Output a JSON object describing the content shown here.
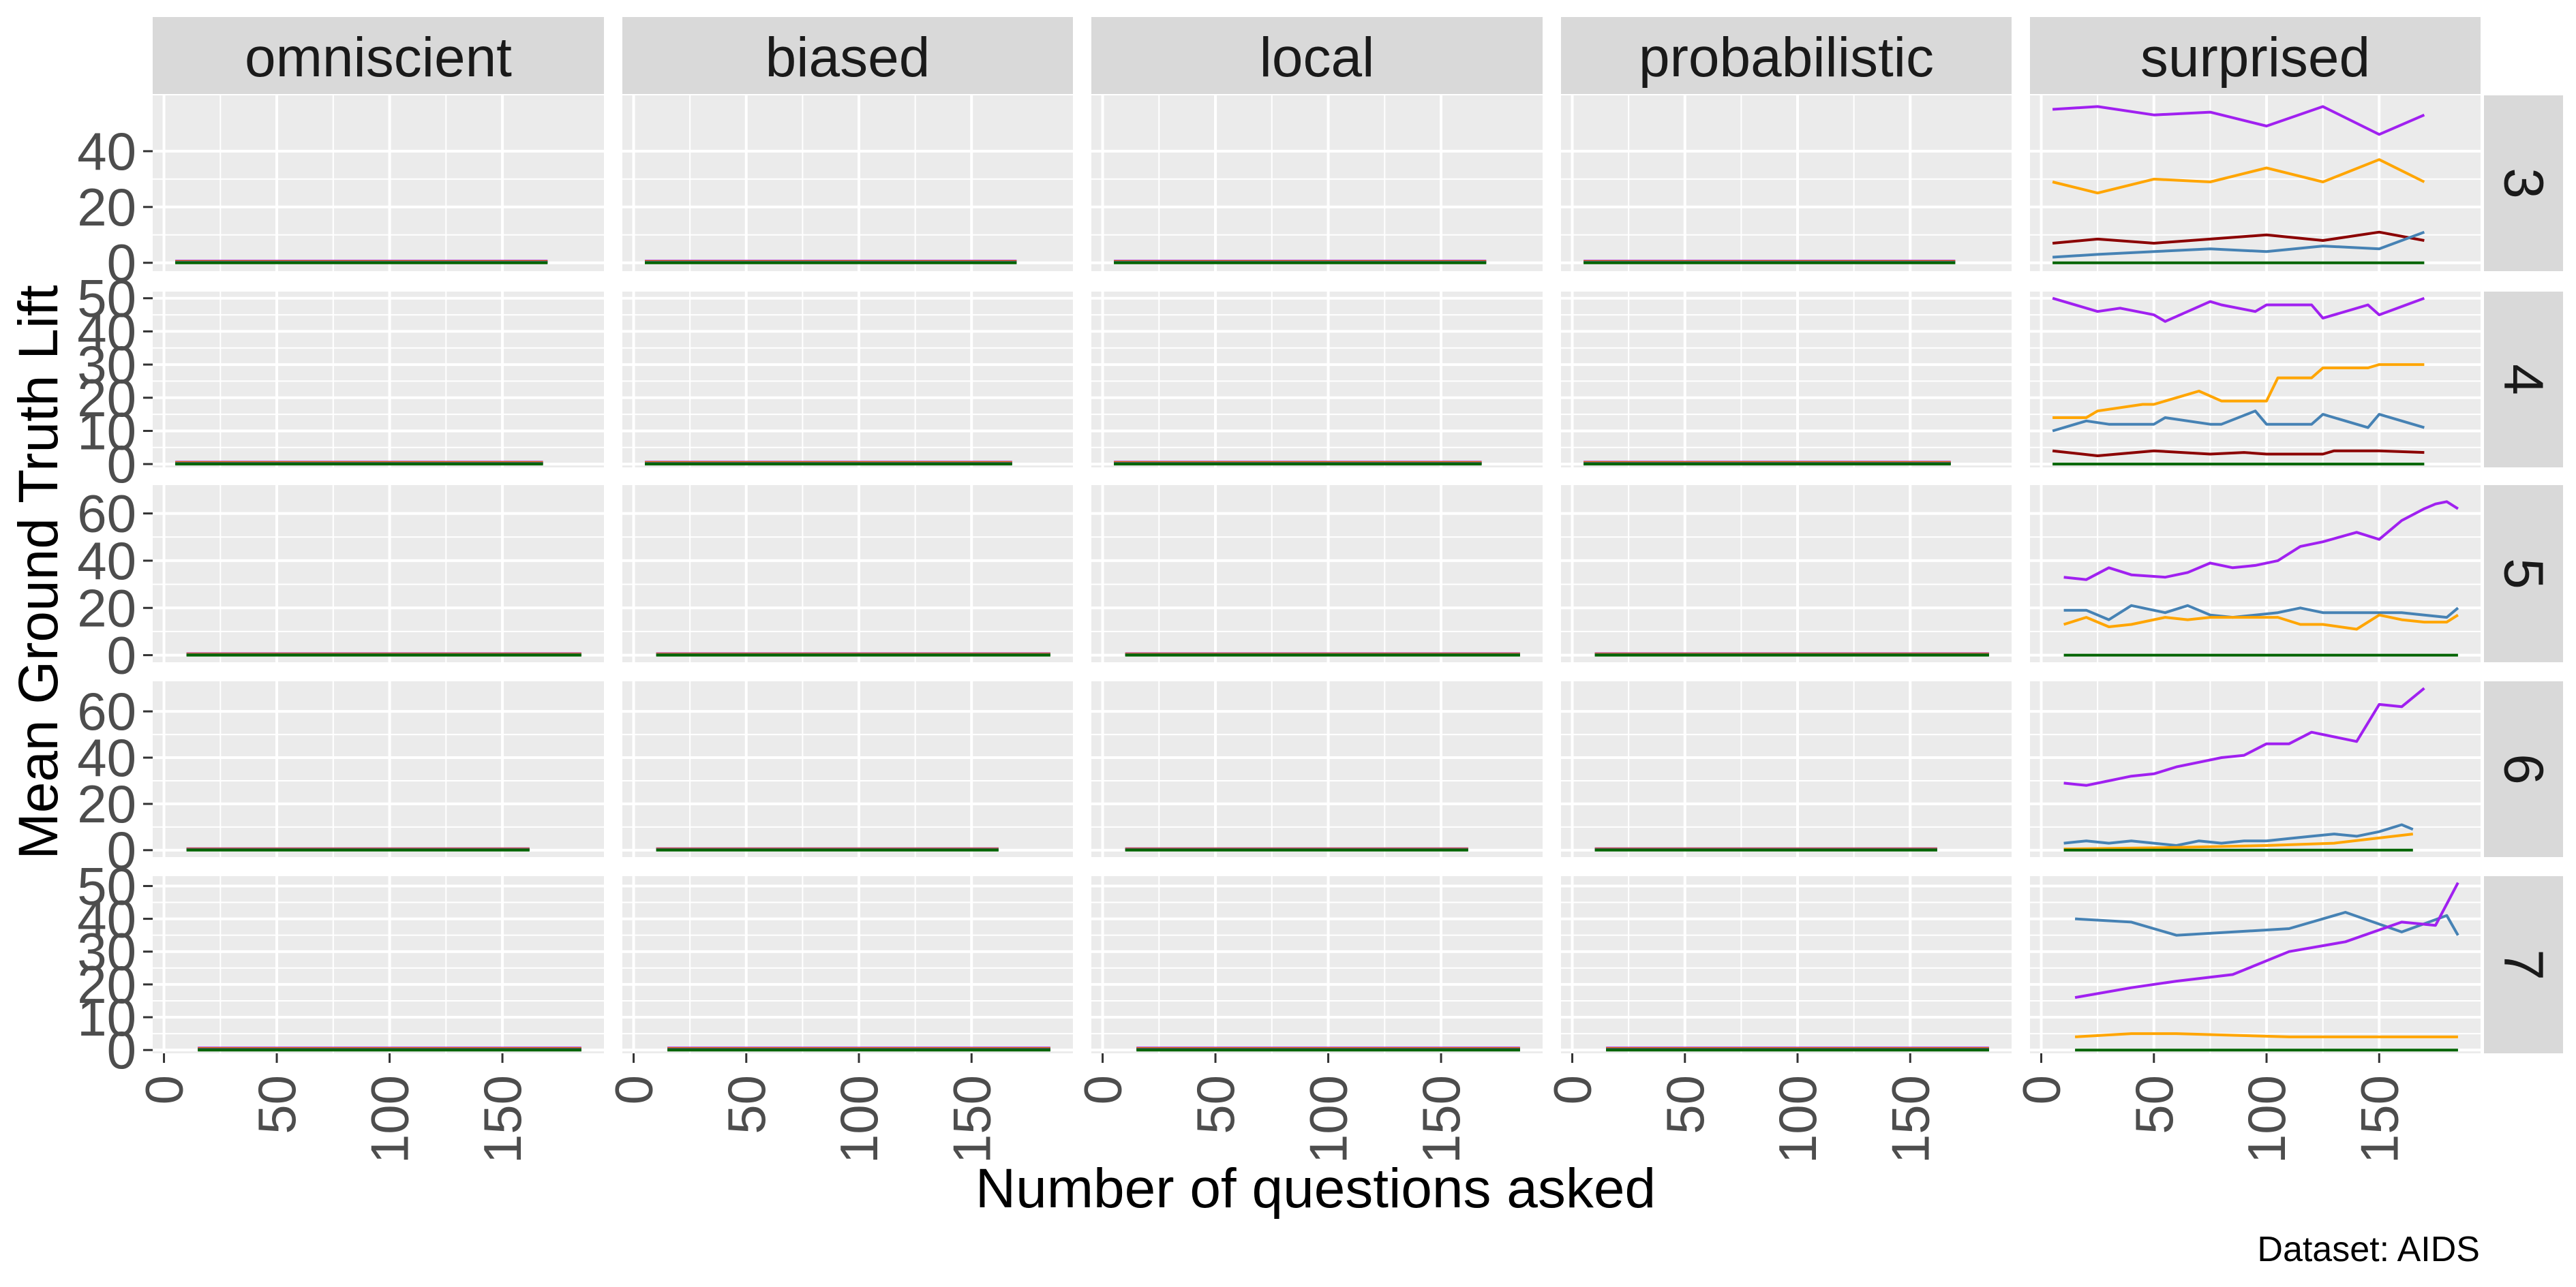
{
  "chart_data": {
    "type": "line",
    "title": "",
    "xlabel": "Number of questions asked",
    "ylabel": "Mean Ground Truth Lift",
    "caption": "Dataset:  AIDS",
    "columns": [
      "omniscient",
      "biased",
      "local",
      "probabilistic",
      "surprised"
    ],
    "xlim": [
      -5,
      195
    ],
    "x_ticks": [
      0,
      50,
      100,
      150
    ],
    "x_tick_labels": [
      "0",
      "50",
      "100",
      "150"
    ],
    "grid": true,
    "legend": "none",
    "colors": {
      "purple": "#a020f0",
      "orange": "#ffa500",
      "darkred": "#8b0000",
      "steelblue": "#4682b4",
      "darkgreen": "#006400",
      "panel_bg": "#ebebeb",
      "strip_bg": "#d9d9d9",
      "grid": "#ffffff"
    },
    "rows": [
      {
        "label": "3",
        "ylim": [
          -3,
          60
        ],
        "y_ticks": [
          0,
          20,
          40
        ],
        "y_tick_labels": [
          "0",
          "20",
          "40"
        ],
        "flat_xrange": {
          "omniscient": [
            5,
            170
          ],
          "biased": [
            5,
            170
          ],
          "local": [
            5,
            170
          ],
          "probabilistic": [
            5,
            170
          ]
        },
        "surprised": [
          {
            "color": "purple",
            "x": [
              5,
              25,
              50,
              75,
              100,
              125,
              150,
              170
            ],
            "y": [
              55,
              56,
              53,
              54,
              49,
              56,
              46,
              53
            ]
          },
          {
            "color": "orange",
            "x": [
              5,
              25,
              50,
              75,
              100,
              125,
              150,
              170
            ],
            "y": [
              29,
              25,
              30,
              29,
              34,
              29,
              37,
              29
            ]
          },
          {
            "color": "darkred",
            "x": [
              5,
              25,
              50,
              75,
              100,
              125,
              150,
              170
            ],
            "y": [
              7,
              8.5,
              7,
              8.5,
              10,
              8,
              11,
              8
            ]
          },
          {
            "color": "steelblue",
            "x": [
              5,
              25,
              50,
              75,
              100,
              125,
              150,
              170
            ],
            "y": [
              2,
              3,
              4,
              5,
              4,
              6,
              5,
              11
            ]
          },
          {
            "color": "darkgreen",
            "x": [
              5,
              170
            ],
            "y": [
              0,
              0
            ]
          }
        ]
      },
      {
        "label": "4",
        "ylim": [
          -1,
          52
        ],
        "y_ticks": [
          0,
          10,
          20,
          30,
          40,
          50
        ],
        "y_tick_labels": [
          "0",
          "10",
          "20",
          "30",
          "40",
          "50"
        ],
        "flat_xrange": {
          "omniscient": [
            5,
            168
          ],
          "biased": [
            5,
            168
          ],
          "local": [
            5,
            168
          ],
          "probabilistic": [
            5,
            168
          ]
        },
        "surprised": [
          {
            "color": "purple",
            "x": [
              5,
              25,
              35,
              50,
              55,
              75,
              80,
              95,
              100,
              120,
              125,
              145,
              150,
              170
            ],
            "y": [
              50,
              46,
              47,
              45,
              43,
              49,
              48,
              46,
              48,
              48,
              44,
              48,
              45,
              50
            ]
          },
          {
            "color": "orange",
            "x": [
              5,
              20,
              25,
              45,
              50,
              65,
              70,
              80,
              90,
              100,
              105,
              120,
              125,
              145,
              150,
              170
            ],
            "y": [
              14,
              14,
              16,
              18,
              18,
              21,
              22,
              19,
              19,
              19,
              26,
              26,
              29,
              29,
              30,
              30
            ]
          },
          {
            "color": "steelblue",
            "x": [
              5,
              20,
              30,
              50,
              55,
              75,
              80,
              95,
              100,
              120,
              125,
              145,
              150,
              170
            ],
            "y": [
              10,
              13,
              12,
              12,
              14,
              12,
              12,
              16,
              12,
              12,
              15,
              11,
              15,
              11
            ]
          },
          {
            "color": "darkred",
            "x": [
              5,
              25,
              50,
              75,
              90,
              100,
              125,
              130,
              145,
              150,
              170
            ],
            "y": [
              4,
              2.5,
              4,
              3,
              3.5,
              3,
              3,
              4,
              4,
              4,
              3.5
            ]
          },
          {
            "color": "darkgreen",
            "x": [
              5,
              170
            ],
            "y": [
              0,
              0
            ]
          }
        ]
      },
      {
        "label": "5",
        "ylim": [
          -3,
          72
        ],
        "y_ticks": [
          0,
          20,
          40,
          60
        ],
        "y_tick_labels": [
          "0",
          "20",
          "40",
          "60"
        ],
        "flat_xrange": {
          "omniscient": [
            10,
            185
          ],
          "biased": [
            10,
            185
          ],
          "local": [
            10,
            185
          ],
          "probabilistic": [
            10,
            185
          ]
        },
        "surprised": [
          {
            "color": "purple",
            "x": [
              10,
              20,
              30,
              40,
              55,
              65,
              75,
              85,
              95,
              105,
              115,
              125,
              140,
              150,
              160,
              170,
              175,
              180,
              185
            ],
            "y": [
              33,
              32,
              37,
              34,
              33,
              35,
              39,
              37,
              38,
              40,
              46,
              48,
              52,
              49,
              57,
              62,
              64,
              65,
              62
            ]
          },
          {
            "color": "steelblue",
            "x": [
              10,
              20,
              30,
              40,
              55,
              65,
              75,
              85,
              95,
              105,
              115,
              125,
              140,
              150,
              160,
              170,
              180,
              185
            ],
            "y": [
              19,
              19,
              15,
              21,
              18,
              21,
              17,
              16,
              17,
              18,
              20,
              18,
              18,
              18,
              18,
              17,
              16,
              20
            ]
          },
          {
            "color": "orange",
            "x": [
              10,
              20,
              30,
              40,
              55,
              65,
              75,
              85,
              95,
              105,
              115,
              125,
              140,
              150,
              160,
              170,
              180,
              185
            ],
            "y": [
              13,
              16,
              12,
              13,
              16,
              15,
              16,
              16,
              16,
              16,
              13,
              13,
              11,
              17,
              15,
              14,
              14,
              17
            ]
          },
          {
            "color": "darkgreen",
            "x": [
              10,
              185
            ],
            "y": [
              0,
              0
            ]
          }
        ]
      },
      {
        "label": "6",
        "ylim": [
          -3,
          73
        ],
        "y_ticks": [
          0,
          20,
          40,
          60
        ],
        "y_tick_labels": [
          "0",
          "20",
          "40",
          "60"
        ],
        "flat_xrange": {
          "omniscient": [
            10,
            162
          ],
          "biased": [
            10,
            162
          ],
          "local": [
            10,
            162
          ],
          "probabilistic": [
            10,
            162
          ]
        },
        "surprised": [
          {
            "color": "purple",
            "x": [
              10,
              20,
              30,
              40,
              50,
              60,
              70,
              80,
              90,
              100,
              110,
              120,
              130,
              140,
              150,
              160,
              170
            ],
            "y": [
              29,
              28,
              30,
              32,
              33,
              36,
              38,
              40,
              41,
              46,
              46,
              51,
              49,
              47,
              63,
              62,
              70
            ]
          },
          {
            "color": "steelblue",
            "x": [
              10,
              20,
              30,
              40,
              50,
              60,
              70,
              80,
              90,
              100,
              110,
              120,
              130,
              140,
              150,
              160,
              165
            ],
            "y": [
              3,
              4,
              3,
              4,
              3,
              2,
              4,
              3,
              4,
              4,
              5,
              6,
              7,
              6,
              8,
              11,
              9
            ]
          },
          {
            "color": "orange",
            "x": [
              10,
              50,
              100,
              130,
              165
            ],
            "y": [
              0.5,
              1,
              2,
              3,
              7
            ]
          },
          {
            "color": "darkgreen",
            "x": [
              10,
              165
            ],
            "y": [
              0,
              0
            ]
          }
        ]
      },
      {
        "label": "7",
        "ylim": [
          -1,
          53
        ],
        "y_ticks": [
          0,
          10,
          20,
          30,
          40,
          50
        ],
        "y_tick_labels": [
          "0",
          "10",
          "20",
          "30",
          "40",
          "50"
        ],
        "flat_xrange": {
          "omniscient": [
            15,
            185
          ],
          "biased": [
            15,
            185
          ],
          "local": [
            15,
            185
          ],
          "probabilistic": [
            15,
            185
          ]
        },
        "surprised": [
          {
            "color": "steelblue",
            "x": [
              15,
              40,
              60,
              85,
              110,
              135,
              160,
              180,
              185
            ],
            "y": [
              40,
              39,
              35,
              36,
              37,
              42,
              36,
              41,
              35
            ]
          },
          {
            "color": "purple",
            "x": [
              15,
              40,
              60,
              85,
              110,
              135,
              160,
              175,
              185
            ],
            "y": [
              16,
              19,
              21,
              23,
              30,
              33,
              39,
              38,
              51
            ]
          },
          {
            "color": "orange",
            "x": [
              15,
              40,
              60,
              85,
              110,
              135,
              160,
              185
            ],
            "y": [
              4,
              5,
              5,
              4.5,
              4,
              4,
              4,
              4
            ]
          },
          {
            "color": "darkgreen",
            "x": [
              15,
              185
            ],
            "y": [
              0,
              0
            ]
          }
        ]
      }
    ]
  }
}
